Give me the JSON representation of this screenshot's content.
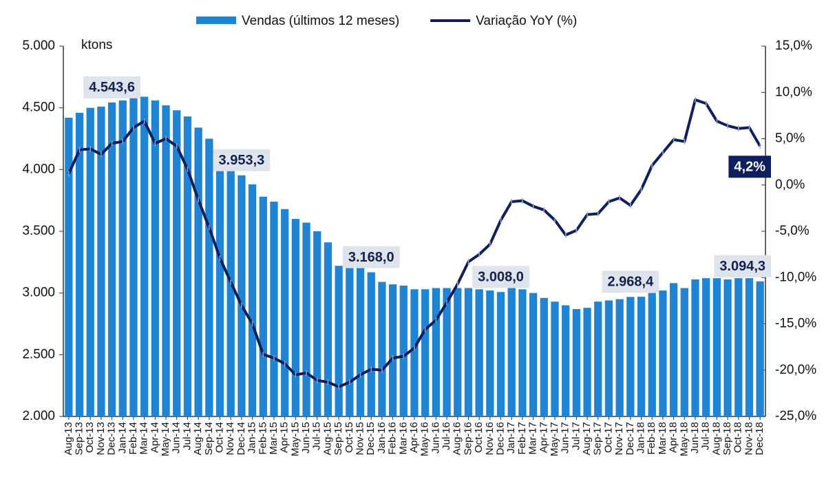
{
  "chart_data": {
    "type": "bar_line",
    "ylabel": "ktons",
    "categories": [
      "Aug-13",
      "Sep-13",
      "Oct-13",
      "Nov-13",
      "Dec-13",
      "Jan-14",
      "Feb-14",
      "Mar-14",
      "Apr-14",
      "May-14",
      "Jun-14",
      "Jul-14",
      "Aug-14",
      "Sep-14",
      "Oct-14",
      "Nov-14",
      "Dec-14",
      "Jan-15",
      "Feb-15",
      "Mar-15",
      "Apr-15",
      "May-15",
      "Jun-15",
      "Jul-15",
      "Aug-15",
      "Sep-15",
      "Oct-15",
      "Nov-15",
      "Dec-15",
      "Jan-16",
      "Feb-16",
      "Mar-16",
      "Apr-16",
      "May-16",
      "Jun-16",
      "Jul-16",
      "Aug-16",
      "Sep-16",
      "Oct-16",
      "Nov-16",
      "Dec-16",
      "Jan-17",
      "Feb-17",
      "Mar-17",
      "Apr-17",
      "May-17",
      "Jun-17",
      "Jul-17",
      "Aug-17",
      "Sep-17",
      "Oct-17",
      "Nov-17",
      "Dec-17",
      "Jan-18",
      "Feb-18",
      "Mar-18",
      "Apr-18",
      "May-18",
      "Jun-18",
      "Jul-18",
      "Aug-18",
      "Sep-18",
      "Oct-18",
      "Nov-18",
      "Dec-18"
    ],
    "series": [
      {
        "name": "Vendas (últimos 12 meses)",
        "type": "bar",
        "color": "#1f84d4",
        "values": [
          4420,
          4460,
          4500,
          4510,
          4543.6,
          4560,
          4590,
          4590,
          4560,
          4520,
          4480,
          4430,
          4340,
          4250,
          4010,
          4000,
          3953.3,
          3880,
          3780,
          3740,
          3680,
          3600,
          3570,
          3500,
          3410,
          3220,
          3210,
          3210,
          3168.0,
          3090,
          3070,
          3060,
          3030,
          3030,
          3040,
          3040,
          3040,
          3040,
          3030,
          3020,
          3008.0,
          3040,
          3030,
          3000,
          2960,
          2930,
          2900,
          2870,
          2880,
          2930,
          2940,
          2950,
          2968.4,
          2970,
          3000,
          3020,
          3080,
          3040,
          3110,
          3120,
          3120,
          3110,
          3120,
          3120,
          3094.3
        ],
        "value_labels": [
          null,
          null,
          null,
          null,
          "4.543,6",
          null,
          null,
          null,
          null,
          null,
          null,
          null,
          null,
          null,
          null,
          null,
          "3.953,3",
          null,
          null,
          null,
          null,
          null,
          null,
          null,
          null,
          null,
          null,
          null,
          "3.168,0",
          null,
          null,
          null,
          null,
          null,
          null,
          null,
          null,
          null,
          null,
          null,
          "3.008,0",
          null,
          null,
          null,
          null,
          null,
          null,
          null,
          null,
          null,
          null,
          null,
          "2.968,4",
          null,
          null,
          null,
          null,
          null,
          null,
          null,
          null,
          null,
          null,
          null,
          "3.094,3"
        ]
      },
      {
        "name": "Variação YoY (%)",
        "type": "line",
        "axis": "y2",
        "color": "#0f1f5e",
        "values": [
          1.2,
          3.8,
          3.9,
          3.3,
          4.5,
          4.7,
          6.2,
          6.9,
          4.5,
          5.0,
          4.2,
          1.7,
          -1.6,
          -4.6,
          -7.9,
          -10.5,
          -13.0,
          -15.0,
          -18.3,
          -18.7,
          -19.3,
          -20.5,
          -20.3,
          -21.1,
          -21.3,
          -21.8,
          -21.3,
          -20.5,
          -19.9,
          -20.0,
          -18.7,
          -18.5,
          -17.6,
          -15.6,
          -14.6,
          -12.7,
          -10.7,
          -8.3,
          -7.5,
          -6.4,
          -3.8,
          -1.8,
          -1.7,
          -2.3,
          -2.7,
          -3.8,
          -5.4,
          -4.9,
          -3.2,
          -3.1,
          -1.8,
          -1.4,
          -2.2,
          -0.5,
          2.1,
          3.5,
          4.9,
          4.7,
          9.2,
          8.8,
          6.9,
          6.4,
          6.1,
          6.2,
          4.2
        ],
        "value_labels": [
          null,
          null,
          null,
          null,
          null,
          null,
          null,
          null,
          null,
          null,
          null,
          null,
          null,
          null,
          null,
          null,
          null,
          null,
          null,
          null,
          null,
          null,
          null,
          null,
          null,
          null,
          null,
          null,
          null,
          null,
          null,
          null,
          null,
          null,
          null,
          null,
          null,
          null,
          null,
          null,
          null,
          null,
          null,
          null,
          null,
          null,
          null,
          null,
          null,
          null,
          null,
          null,
          null,
          null,
          null,
          null,
          null,
          null,
          null,
          null,
          null,
          null,
          null,
          null,
          "4,2%"
        ]
      }
    ],
    "ylim": [
      2000,
      5000
    ],
    "yticks": [
      {
        "value": 2000,
        "label": "2.000"
      },
      {
        "value": 2500,
        "label": "2.500"
      },
      {
        "value": 3000,
        "label": "3.000"
      },
      {
        "value": 3500,
        "label": "3.500"
      },
      {
        "value": 4000,
        "label": "4.000"
      },
      {
        "value": 4500,
        "label": "4.500"
      },
      {
        "value": 5000,
        "label": "5.000"
      }
    ],
    "y2lim": [
      -25,
      15
    ],
    "y2ticks": [
      {
        "value": -25,
        "label": "-25,0%"
      },
      {
        "value": -20,
        "label": "-20,0%"
      },
      {
        "value": -15,
        "label": "-15,0%"
      },
      {
        "value": -10,
        "label": "-10,0%"
      },
      {
        "value": -5,
        "label": "-5,0%"
      },
      {
        "value": 0,
        "label": "0,0%"
      },
      {
        "value": 5,
        "label": "5,0%"
      },
      {
        "value": 10,
        "label": "10,0%"
      },
      {
        "value": 15,
        "label": "15,0%"
      }
    ],
    "legend": "top"
  }
}
